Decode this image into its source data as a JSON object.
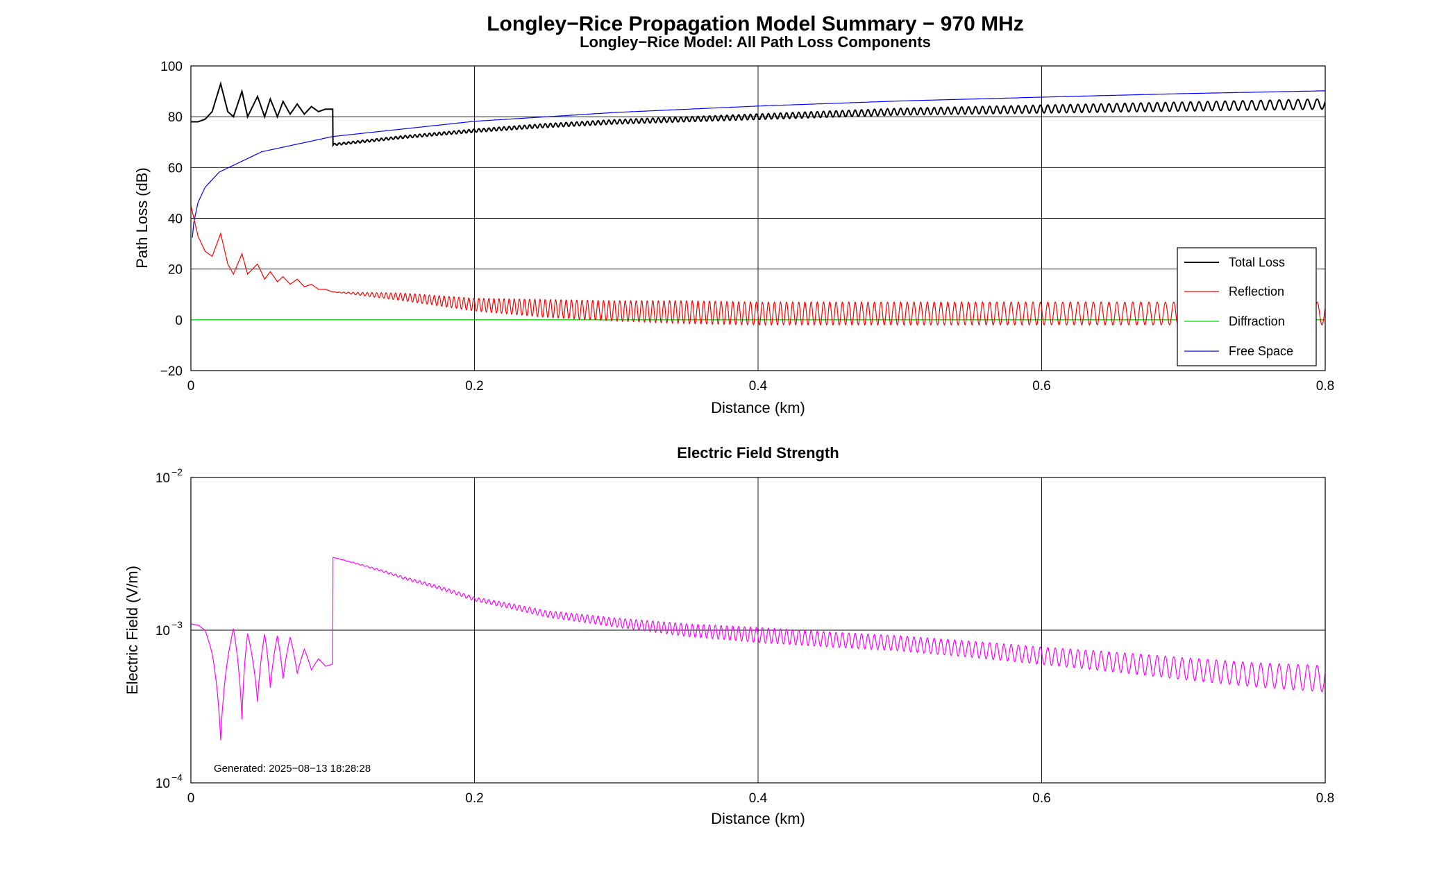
{
  "figure": {
    "suptitle": "Longley−Rice Propagation Model Summary − 970 MHz",
    "generated_note": "Generated: 2025−08−13 18:28:28"
  },
  "chart_data": [
    {
      "type": "line",
      "title": "Longley−Rice Model: All Path Loss Components",
      "xlabel": "Distance (km)",
      "ylabel": "Path Loss (dB)",
      "xlim": [
        0,
        0.8
      ],
      "ylim": [
        -20,
        100
      ],
      "xticks": [
        0,
        0.2,
        0.4,
        0.6,
        0.8
      ],
      "xtick_labels": [
        "0",
        "0.2",
        "0.4",
        "0.6",
        "0.8"
      ],
      "yticks": [
        -20,
        0,
        20,
        40,
        60,
        80,
        100
      ],
      "ytick_labels": [
        "−20",
        "0",
        "20",
        "40",
        "60",
        "80",
        "100"
      ],
      "grid": true,
      "legend_position": "lower-right",
      "series": [
        {
          "name": "Total Loss",
          "color": "#000000",
          "x": [
            0,
            0.005,
            0.01,
            0.015,
            0.021,
            0.026,
            0.03,
            0.036,
            0.04,
            0.047,
            0.052,
            0.056,
            0.061,
            0.065,
            0.07,
            0.075,
            0.08,
            0.085,
            0.09,
            0.095,
            0.1,
            0.1001,
            0.15,
            0.2,
            0.25,
            0.3,
            0.35,
            0.4,
            0.45,
            0.5,
            0.55,
            0.6,
            0.65,
            0.7,
            0.75,
            0.8
          ],
          "values": [
            78,
            78,
            79,
            82,
            93,
            82,
            80,
            90,
            80,
            88,
            80,
            87,
            80,
            86,
            81,
            85,
            81,
            84,
            82,
            83,
            83,
            69,
            72,
            74.5,
            76.5,
            78,
            79,
            80,
            81,
            82,
            82.5,
            83,
            83.5,
            84,
            84.5,
            85
          ]
        },
        {
          "name": "Reflection",
          "color": "#ff0000",
          "x": [
            0,
            0.005,
            0.01,
            0.015,
            0.021,
            0.026,
            0.03,
            0.036,
            0.04,
            0.047,
            0.052,
            0.056,
            0.061,
            0.065,
            0.07,
            0.075,
            0.08,
            0.085,
            0.09,
            0.095,
            0.1,
            0.15,
            0.2,
            0.25,
            0.3,
            0.35,
            0.4,
            0.45,
            0.5,
            0.55,
            0.6,
            0.65,
            0.7,
            0.75,
            0.8
          ],
          "values": [
            45,
            33,
            27,
            25,
            34,
            22,
            18,
            26,
            18,
            22,
            16,
            19,
            15,
            17,
            14,
            16,
            13,
            14,
            12,
            12,
            11,
            9,
            6,
            4.5,
            3.5,
            3,
            2.5,
            2.5,
            2.5,
            2.5,
            2.5,
            2.5,
            2.5,
            2.5,
            2.5
          ],
          "oscillation_amplitude_db": [
            0,
            0,
            0,
            0,
            0,
            0,
            0,
            0,
            0,
            0,
            0,
            0,
            0,
            0,
            0,
            0,
            0,
            0,
            0,
            0,
            0,
            1.5,
            2.5,
            3.5,
            4,
            4.5,
            4.5,
            4.5,
            4.5,
            4.5,
            4.5,
            4.5,
            4.5,
            4.5,
            4.5
          ]
        },
        {
          "name": "Diffraction",
          "color": "#00dd00",
          "x": [
            0,
            0.8
          ],
          "values": [
            0,
            0
          ]
        },
        {
          "name": "Free Space",
          "color": "#0000ff",
          "x": [
            0.001,
            0.002,
            0.005,
            0.01,
            0.02,
            0.05,
            0.1,
            0.2,
            0.3,
            0.4,
            0.5,
            0.6,
            0.7,
            0.8
          ],
          "values": [
            32.2,
            38.2,
            46.2,
            52.2,
            58.2,
            66.2,
            72.2,
            78.2,
            81.7,
            84.2,
            86.2,
            87.7,
            89.1,
            90.2
          ]
        }
      ]
    },
    {
      "type": "line",
      "title": "Electric Field Strength",
      "xlabel": "Distance (km)",
      "ylabel": "Electric Field (V/m)",
      "xlim": [
        0,
        0.8
      ],
      "ylim": [
        0.0001,
        0.01
      ],
      "yscale": "log",
      "xticks": [
        0,
        0.2,
        0.4,
        0.6,
        0.8
      ],
      "xtick_labels": [
        "0",
        "0.2",
        "0.4",
        "0.6",
        "0.8"
      ],
      "yticks": [
        0.0001,
        0.001,
        0.01
      ],
      "ytick_labels": [
        {
          "base": "10",
          "exp": "−4"
        },
        {
          "base": "10",
          "exp": "−3"
        },
        {
          "base": "10",
          "exp": "−2"
        }
      ],
      "grid": true,
      "series": [
        {
          "name": "",
          "color": "#ff00ff",
          "x": [
            0,
            0.005,
            0.01,
            0.015,
            0.021,
            0.026,
            0.03,
            0.036,
            0.04,
            0.047,
            0.052,
            0.056,
            0.061,
            0.065,
            0.07,
            0.075,
            0.08,
            0.085,
            0.09,
            0.095,
            0.1,
            0.1001,
            0.15,
            0.2,
            0.25,
            0.3,
            0.35,
            0.4,
            0.45,
            0.5,
            0.55,
            0.6,
            0.65,
            0.7,
            0.75,
            0.8
          ],
          "values": [
            0.0011,
            0.00108,
            0.001,
            0.0007,
            0.00019,
            0.00065,
            0.00102,
            0.00026,
            0.00095,
            0.00034,
            0.00094,
            0.00042,
            0.00092,
            0.00048,
            0.0009,
            0.00052,
            0.00075,
            0.00055,
            0.00065,
            0.00058,
            0.0006,
            0.003,
            0.0022,
            0.0016,
            0.00128,
            0.00112,
            0.001,
            0.00093,
            0.00087,
            0.00082,
            0.00075,
            0.00068,
            0.00062,
            0.00056,
            0.00051,
            0.00048
          ],
          "oscillation_ratio": [
            1,
            1,
            1,
            1,
            1,
            1,
            1,
            1,
            1,
            1,
            1,
            1,
            1,
            1,
            1,
            1,
            1,
            1,
            1,
            1,
            1,
            1,
            1.02,
            1.03,
            1.05,
            1.07,
            1.1,
            1.12,
            1.12,
            1.12,
            1.13,
            1.14,
            1.16,
            1.18,
            1.2,
            1.22
          ]
        }
      ]
    }
  ]
}
